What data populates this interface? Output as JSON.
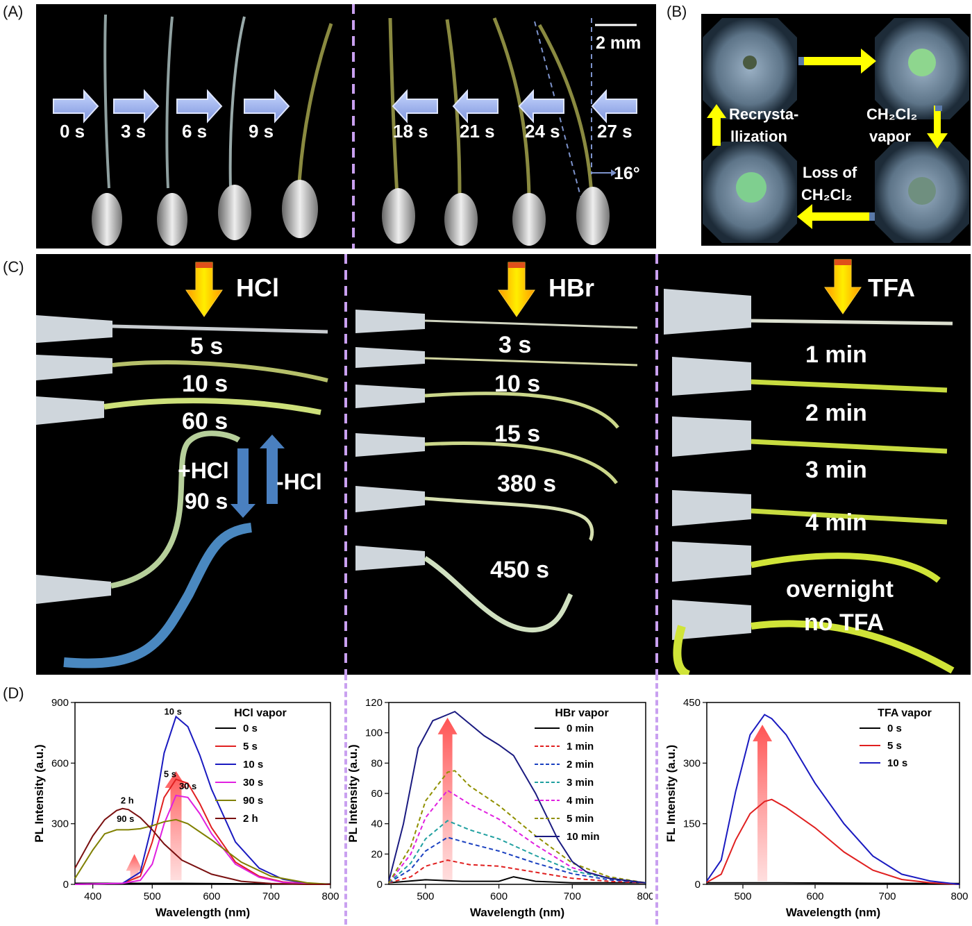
{
  "panels": {
    "a": "(A)",
    "b": "(B)",
    "c": "(C)",
    "d": "(D)"
  },
  "panelA": {
    "times_left": [
      "0 s",
      "3 s",
      "6 s",
      "9 s"
    ],
    "times_right": [
      "18 s",
      "21 s",
      "24 s",
      "27 s"
    ],
    "scale_bar": "2 mm",
    "angle": "16°"
  },
  "panelB": {
    "recryst_1": "Recrysta-",
    "recryst_2": "llization",
    "vapor_1": "CH₂Cl₂",
    "vapor_2": "vapor",
    "loss_1": "Loss of",
    "loss_2": "CH₂Cl₂"
  },
  "panelC": {
    "hcl": {
      "title": "HCl",
      "times": [
        "5 s",
        "10 s",
        "60 s"
      ],
      "plus": "+HCl",
      "t90": "90 s",
      "minus": "-HCl"
    },
    "hbr": {
      "title": "HBr",
      "times": [
        "3 s",
        "10 s",
        "15 s",
        "380 s",
        "450 s"
      ]
    },
    "tfa": {
      "title": "TFA",
      "times": [
        "1 min",
        "2 min",
        "3 min",
        "4 min"
      ],
      "overnight_1": "overnight",
      "overnight_2": "no TFA"
    }
  },
  "chart_data": [
    {
      "type": "line",
      "xlabel": "Wavelength (nm)",
      "ylabel": "PL Intensity (a.u.)",
      "xlim": [
        370,
        800
      ],
      "ylim": [
        0,
        900
      ],
      "xticks": [
        400,
        500,
        600,
        700,
        800
      ],
      "yticks": [
        0,
        300,
        600,
        900
      ],
      "legend_title": "HCl vapor",
      "annotations": [
        "10 s",
        "5 s",
        "30 s",
        "2 h",
        "90 s"
      ],
      "series": [
        {
          "name": "0 s",
          "color": "#000000",
          "dash": "",
          "x": [
            370,
            450,
            550,
            650,
            800
          ],
          "y": [
            5,
            5,
            5,
            3,
            2
          ]
        },
        {
          "name": "5 s",
          "color": "#e02020",
          "dash": "",
          "x": [
            370,
            450,
            480,
            500,
            520,
            540,
            560,
            580,
            600,
            640,
            680,
            720,
            760,
            800
          ],
          "y": [
            0,
            5,
            40,
            210,
            430,
            520,
            500,
            400,
            280,
            110,
            40,
            12,
            4,
            0
          ]
        },
        {
          "name": "10 s",
          "color": "#1a1ac0",
          "dash": "",
          "x": [
            370,
            450,
            480,
            500,
            520,
            540,
            560,
            580,
            600,
            640,
            680,
            720,
            760,
            800
          ],
          "y": [
            0,
            5,
            60,
            300,
            650,
            830,
            780,
            640,
            470,
            210,
            80,
            25,
            6,
            0
          ]
        },
        {
          "name": "30 s",
          "color": "#e020e0",
          "dash": "",
          "x": [
            370,
            450,
            480,
            500,
            520,
            540,
            560,
            580,
            600,
            640,
            680,
            720,
            760,
            800
          ],
          "y": [
            0,
            5,
            20,
            100,
            300,
            440,
            430,
            350,
            250,
            100,
            35,
            10,
            3,
            0
          ]
        },
        {
          "name": "90 s",
          "color": "#808000",
          "dash": "",
          "x": [
            370,
            400,
            420,
            440,
            460,
            480,
            500,
            520,
            540,
            560,
            600,
            650,
            700,
            760,
            800
          ],
          "y": [
            30,
            170,
            250,
            270,
            270,
            275,
            290,
            310,
            320,
            300,
            220,
            110,
            40,
            8,
            0
          ]
        },
        {
          "name": "2 h",
          "color": "#7a1010",
          "dash": "",
          "x": [
            370,
            400,
            420,
            440,
            450,
            460,
            480,
            500,
            520,
            550,
            600,
            650,
            700,
            760,
            800
          ],
          "y": [
            80,
            240,
            320,
            365,
            375,
            370,
            330,
            270,
            200,
            120,
            50,
            15,
            4,
            0,
            0
          ]
        }
      ]
    },
    {
      "type": "line",
      "xlabel": "Wavelength (nm)",
      "ylabel": "PL Intensity (a.u.)",
      "xlim": [
        450,
        800
      ],
      "ylim": [
        0,
        120
      ],
      "xticks": [
        500,
        600,
        700,
        800
      ],
      "yticks": [
        0,
        20,
        40,
        60,
        80,
        100,
        120
      ],
      "legend_title": "HBr vapor",
      "series": [
        {
          "name": "0   min",
          "color": "#000000",
          "dash": "",
          "x": [
            450,
            500,
            550,
            600,
            620,
            650,
            700,
            800
          ],
          "y": [
            1,
            3,
            2,
            2,
            5,
            2,
            1,
            1
          ]
        },
        {
          "name": "1   min",
          "color": "#e02020",
          "dash": "6,4",
          "x": [
            450,
            480,
            500,
            530,
            560,
            600,
            650,
            700,
            750,
            800
          ],
          "y": [
            1,
            5,
            12,
            16,
            13,
            12,
            8,
            4,
            2,
            1
          ]
        },
        {
          "name": "2   min",
          "color": "#1a40c0",
          "dash": "6,4",
          "x": [
            450,
            480,
            500,
            530,
            560,
            600,
            650,
            700,
            750,
            800
          ],
          "y": [
            1,
            10,
            22,
            31,
            27,
            22,
            14,
            7,
            3,
            1
          ]
        },
        {
          "name": "3   min",
          "color": "#20a0a0",
          "dash": "6,4",
          "x": [
            450,
            480,
            500,
            530,
            560,
            600,
            650,
            700,
            750,
            800
          ],
          "y": [
            1,
            14,
            30,
            42,
            36,
            30,
            19,
            9,
            4,
            1
          ]
        },
        {
          "name": "4   min",
          "color": "#e020e0",
          "dash": "6,4",
          "x": [
            450,
            480,
            500,
            530,
            560,
            600,
            650,
            700,
            750,
            800
          ],
          "y": [
            1,
            20,
            44,
            62,
            53,
            43,
            26,
            11,
            4,
            1
          ]
        },
        {
          "name": "5   min",
          "color": "#909000",
          "dash": "6,4",
          "x": [
            450,
            480,
            500,
            530,
            540,
            560,
            600,
            650,
            700,
            750,
            800
          ],
          "y": [
            1,
            25,
            55,
            74,
            75,
            65,
            52,
            32,
            14,
            5,
            1
          ]
        },
        {
          "name": "10 min",
          "color": "#1a1a80",
          "dash": "",
          "x": [
            450,
            470,
            490,
            510,
            530,
            540,
            560,
            580,
            600,
            620,
            650,
            680,
            700,
            720,
            750,
            800
          ],
          "y": [
            2,
            40,
            90,
            108,
            112,
            114,
            106,
            98,
            92,
            85,
            60,
            30,
            15,
            8,
            4,
            1
          ]
        }
      ]
    },
    {
      "type": "line",
      "xlabel": "Wavelength (nm)",
      "ylabel": "FL Intensity (a.u.)",
      "xlim": [
        450,
        800
      ],
      "ylim": [
        0,
        450
      ],
      "xticks": [
        500,
        600,
        700,
        800
      ],
      "yticks": [
        0,
        150,
        300,
        450
      ],
      "legend_title": "TFA vapor",
      "series": [
        {
          "name": "0 s",
          "color": "#000000",
          "dash": "",
          "x": [
            450,
            550,
            650,
            800
          ],
          "y": [
            4,
            4,
            3,
            2
          ]
        },
        {
          "name": "5 s",
          "color": "#e02020",
          "dash": "",
          "x": [
            450,
            470,
            490,
            510,
            530,
            540,
            560,
            580,
            600,
            640,
            680,
            720,
            760,
            800
          ],
          "y": [
            5,
            25,
            110,
            175,
            205,
            210,
            190,
            165,
            140,
            80,
            35,
            12,
            4,
            0
          ]
        },
        {
          "name": "10 s",
          "color": "#1a1ac0",
          "dash": "",
          "x": [
            450,
            470,
            490,
            510,
            530,
            540,
            560,
            580,
            600,
            640,
            680,
            720,
            760,
            800
          ],
          "y": [
            8,
            60,
            230,
            370,
            420,
            410,
            370,
            310,
            250,
            150,
            70,
            25,
            8,
            0
          ]
        }
      ]
    }
  ]
}
